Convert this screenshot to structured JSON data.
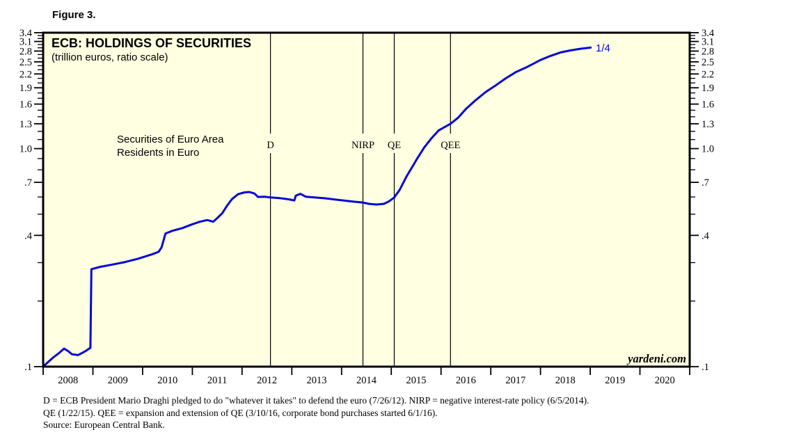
{
  "figure_label": "Figure 3.",
  "chart": {
    "title": "ECB: HOLDINGS OF SECURITIES",
    "subtitle": "(trillion euros, ratio scale)",
    "annotation": {
      "line1": "Securities of Euro Area",
      "line2": "Residents in Euro"
    },
    "end_label": "1/4",
    "watermark": "yardeni.com",
    "colors": {
      "line_blue": "#0404D8",
      "plot_background": "#FFFFE1",
      "axis_black": "#000000"
    }
  },
  "chart_data": {
    "type": "line",
    "title": "ECB: HOLDINGS OF SECURITIES",
    "subtitle": "(trillion euros, ratio scale)",
    "units": "trillion euros",
    "scale": "ratio (logarithmic)",
    "x_range": [
      2008,
      2021
    ],
    "y_range": [
      0.1,
      3.4
    ],
    "y_ticks_major": [
      3.4,
      3.1,
      2.8,
      2.5,
      2.2,
      1.9,
      1.6,
      1.3,
      1.0,
      0.7,
      0.4,
      0.1
    ],
    "y_tick_labels": [
      "3.4",
      "3.1",
      "2.8",
      "2.5",
      "2.2",
      "1.9",
      "1.6",
      "1.3",
      "1.0",
      ".7",
      ".4",
      ".1"
    ],
    "y_ticks_minor": [
      3.3,
      3.2,
      3.0,
      2.9,
      2.7,
      2.6,
      2.4,
      2.3,
      2.1,
      2.0,
      1.8,
      1.7,
      1.5,
      1.4,
      1.2,
      1.1,
      0.9,
      0.8,
      0.6,
      0.5,
      0.3,
      0.2
    ],
    "x_year_ticks": [
      2008,
      2009,
      2010,
      2011,
      2012,
      2013,
      2014,
      2015,
      2016,
      2017,
      2018,
      2019,
      2020,
      2021
    ],
    "x_year_labels": [
      "2008",
      "2009",
      "2010",
      "2011",
      "2012",
      "2013",
      "2014",
      "2015",
      "2016",
      "2017",
      "2018",
      "2019",
      "2020"
    ],
    "event_lines": [
      {
        "label": "D",
        "year": 2012.57
      },
      {
        "label": "NIRP",
        "year": 2014.43
      },
      {
        "label": "QE",
        "year": 2015.06
      },
      {
        "label": "QEE",
        "year": 2016.19
      }
    ],
    "series": [
      {
        "name": "Securities of Euro Area Residents in Euro",
        "end_point_label": "1/4",
        "points": [
          [
            2008.02,
            0.101
          ],
          [
            2008.1,
            0.105
          ],
          [
            2008.2,
            0.11
          ],
          [
            2008.33,
            0.116
          ],
          [
            2008.42,
            0.121
          ],
          [
            2008.5,
            0.118
          ],
          [
            2008.58,
            0.114
          ],
          [
            2008.7,
            0.113
          ],
          [
            2008.83,
            0.117
          ],
          [
            2008.95,
            0.122
          ],
          [
            2008.97,
            0.28
          ],
          [
            2009.15,
            0.287
          ],
          [
            2009.4,
            0.294
          ],
          [
            2009.65,
            0.302
          ],
          [
            2009.9,
            0.312
          ],
          [
            2010.05,
            0.32
          ],
          [
            2010.2,
            0.328
          ],
          [
            2010.32,
            0.336
          ],
          [
            2010.38,
            0.352
          ],
          [
            2010.46,
            0.408
          ],
          [
            2010.6,
            0.42
          ],
          [
            2010.8,
            0.432
          ],
          [
            2011.0,
            0.45
          ],
          [
            2011.15,
            0.462
          ],
          [
            2011.3,
            0.47
          ],
          [
            2011.42,
            0.462
          ],
          [
            2011.5,
            0.48
          ],
          [
            2011.6,
            0.505
          ],
          [
            2011.7,
            0.548
          ],
          [
            2011.8,
            0.588
          ],
          [
            2011.92,
            0.618
          ],
          [
            2012.05,
            0.63
          ],
          [
            2012.15,
            0.632
          ],
          [
            2012.25,
            0.622
          ],
          [
            2012.32,
            0.6
          ],
          [
            2012.45,
            0.602
          ],
          [
            2012.57,
            0.597
          ],
          [
            2012.75,
            0.593
          ],
          [
            2012.95,
            0.585
          ],
          [
            2013.05,
            0.578
          ],
          [
            2013.08,
            0.608
          ],
          [
            2013.17,
            0.62
          ],
          [
            2013.28,
            0.602
          ],
          [
            2013.45,
            0.597
          ],
          [
            2013.65,
            0.592
          ],
          [
            2013.85,
            0.585
          ],
          [
            2014.05,
            0.578
          ],
          [
            2014.25,
            0.571
          ],
          [
            2014.43,
            0.566
          ],
          [
            2014.55,
            0.558
          ],
          [
            2014.7,
            0.554
          ],
          [
            2014.85,
            0.558
          ],
          [
            2014.95,
            0.572
          ],
          [
            2015.06,
            0.597
          ],
          [
            2015.17,
            0.648
          ],
          [
            2015.31,
            0.748
          ],
          [
            2015.45,
            0.845
          ],
          [
            2015.52,
            0.9
          ],
          [
            2015.66,
            1.01
          ],
          [
            2015.8,
            1.11
          ],
          [
            2015.95,
            1.21
          ],
          [
            2016.09,
            1.262
          ],
          [
            2016.19,
            1.3
          ],
          [
            2016.35,
            1.39
          ],
          [
            2016.5,
            1.52
          ],
          [
            2016.7,
            1.67
          ],
          [
            2016.9,
            1.82
          ],
          [
            2017.1,
            1.95
          ],
          [
            2017.3,
            2.1
          ],
          [
            2017.5,
            2.24
          ],
          [
            2017.7,
            2.35
          ],
          [
            2017.9,
            2.48
          ],
          [
            2018.0,
            2.55
          ],
          [
            2018.2,
            2.66
          ],
          [
            2018.4,
            2.76
          ],
          [
            2018.6,
            2.82
          ],
          [
            2018.8,
            2.87
          ],
          [
            2019.01,
            2.905
          ]
        ]
      }
    ]
  },
  "footnotes": [
    "D = ECB President Mario Draghi pledged to do \"whatever it takes\" to defend the euro (7/26/12). NIRP = negative interest-rate policy (6/5/2014).",
    "QE (1/22/15). QEE = expansion and extension of QE (3/10/16, corporate bond purchases started 6/1/16).",
    "Source: European Central Bank."
  ]
}
